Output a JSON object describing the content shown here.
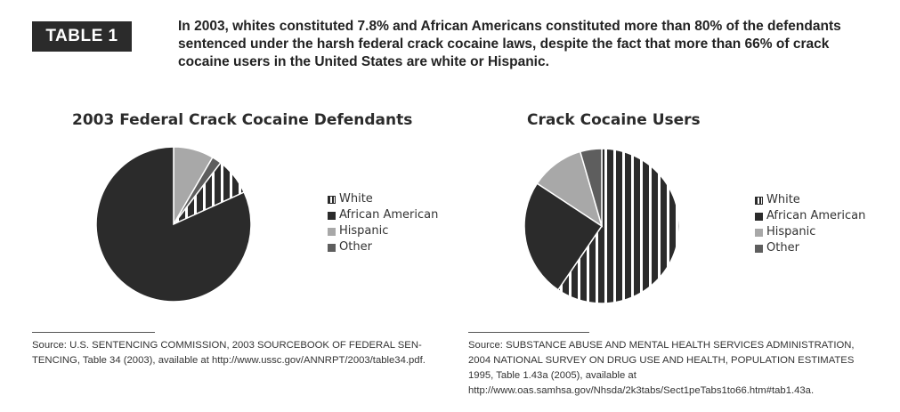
{
  "badge": "TABLE 1",
  "headline": "In 2003, whites constituted 7.8% and African Americans constituted more than 80% of the defendants sentenced under the harsh federal crack cocaine laws, despite the fact that more than 66% of crack cocaine users in the United States are white or Hispanic.",
  "colors": {
    "african_american": "#2b2b2b",
    "hispanic": "#a8a8a8",
    "other": "#5e5e5e",
    "white_stripe": "#2b2b2b",
    "white_bg": "#ffffff"
  },
  "legend": [
    "White",
    "African American",
    "Hispanic",
    "Other"
  ],
  "chart_data": [
    {
      "type": "pie",
      "title": "2003 Federal Crack Cocaine Defendants",
      "labels": [
        "White",
        "African American",
        "Hispanic",
        "Other"
      ],
      "values": [
        7.8,
        81.8,
        8.4,
        2.0
      ],
      "legend_position": "right"
    },
    {
      "type": "pie",
      "title": "Crack Cocaine Users",
      "labels": [
        "White",
        "African American",
        "Hispanic",
        "Other"
      ],
      "values": [
        53,
        22,
        10,
        4
      ],
      "legend_position": "right"
    }
  ],
  "sources": [
    [
      "Source: U.S. SENTENCING COMMISSION, 2003 SOURCEBOOK OF FEDERAL SEN-",
      "TENCING, Table 34 (2003), available at http://www.ussc.gov/ANNRPT/2003/table34.pdf."
    ],
    [
      "Source: SUBSTANCE ABUSE AND MENTAL HEALTH SERVICES ADMINISTRATION,",
      "2004 NATIONAL SURVEY ON DRUG USE AND HEALTH, POPULATION ESTIMATES",
      "1995, Table 1.43a (2005), available at",
      "http://www.oas.samhsa.gov/Nhsda/2k3tabs/Sect1peTabs1to66.htm#tab1.43a."
    ]
  ]
}
